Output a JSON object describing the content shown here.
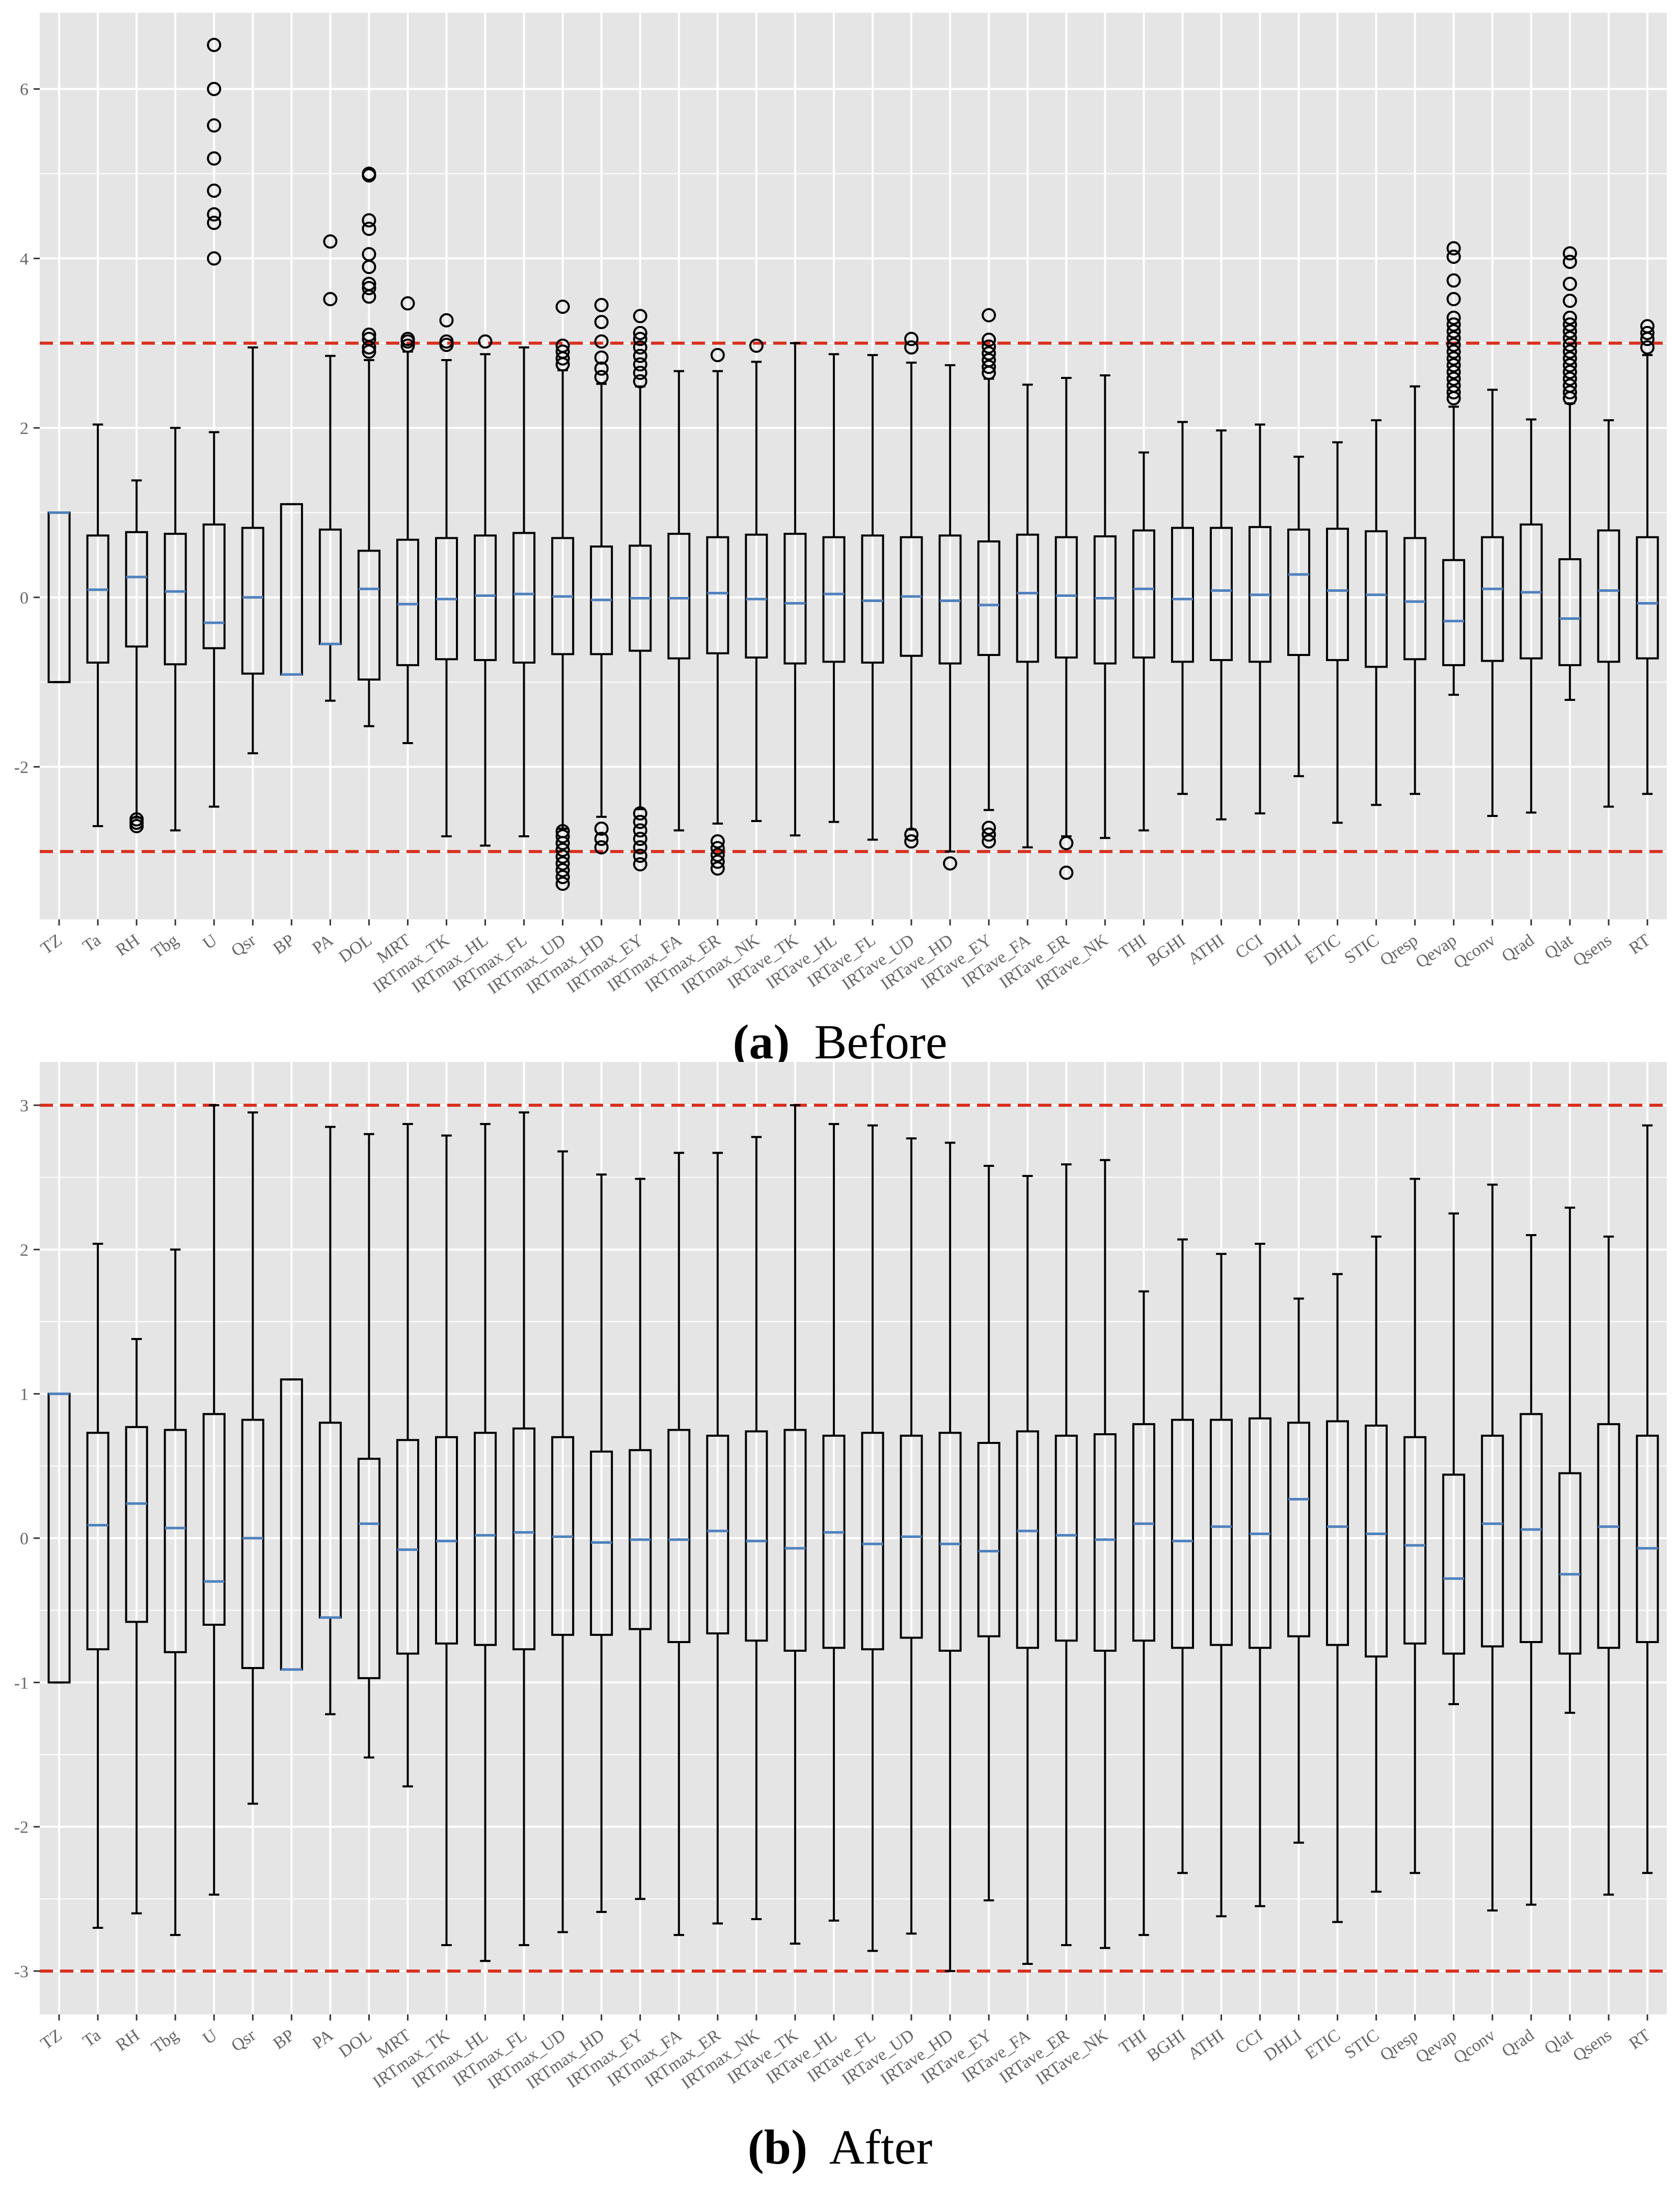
{
  "figure": {
    "caption_a_letter": "(a)",
    "caption_a_text": "Before",
    "caption_b_letter": "(b)",
    "caption_b_text": "After"
  },
  "colors": {
    "panel_bg": "#e5e5e5",
    "grid": "#ffffff",
    "box_line": "#000000",
    "median": "#4f81bd",
    "threshold": "#d9301f",
    "tick_text": "#666666"
  },
  "chart_data": [
    {
      "type": "boxplot",
      "panel": "a",
      "title": "Before",
      "xlabel": "",
      "ylabel": "",
      "ylim": [
        -3.8,
        6.9
      ],
      "yticks": [
        -2,
        0,
        2,
        4,
        6
      ],
      "thresholds": [
        3,
        -3
      ],
      "grid": true,
      "categories": [
        "TZ",
        "Ta",
        "RH",
        "Tbg",
        "U",
        "Qsr",
        "BP",
        "PA",
        "DOL",
        "MRT",
        "IRTmax_TK",
        "IRTmax_HL",
        "IRTmax_FL",
        "IRTmax_UD",
        "IRTmax_HD",
        "IRTmax_EY",
        "IRTmax_FA",
        "IRTmax_ER",
        "IRTmax_NK",
        "IRTave_TK",
        "IRTave_HL",
        "IRTave_FL",
        "IRTave_UD",
        "IRTave_HD",
        "IRTave_EY",
        "IRTave_FA",
        "IRTave_ER",
        "IRTave_NK",
        "THI",
        "BGHI",
        "ATHI",
        "CCI",
        "DHLI",
        "ETIC",
        "STIC",
        "Qresp",
        "Qevap",
        "Qconv",
        "Qrad",
        "Qlat",
        "Qsens",
        "RT"
      ],
      "boxes": [
        {
          "whislo": -1.0,
          "q1": -1.0,
          "med": 1.0,
          "q3": 1.0,
          "whishi": 1.0,
          "fliers": []
        },
        {
          "whislo": -2.7,
          "q1": -0.77,
          "med": 0.09,
          "q3": 0.73,
          "whishi": 2.04,
          "fliers": []
        },
        {
          "whislo": -2.6,
          "q1": -0.58,
          "med": 0.24,
          "q3": 0.77,
          "whishi": 1.38,
          "fliers": [
            -2.62,
            -2.66,
            -2.7
          ]
        },
        {
          "whislo": -2.75,
          "q1": -0.79,
          "med": 0.07,
          "q3": 0.75,
          "whishi": 2.0,
          "fliers": []
        },
        {
          "whislo": -2.47,
          "q1": -0.6,
          "med": -0.3,
          "q3": 0.86,
          "whishi": 1.95,
          "fliers": [
            4.0,
            4.42,
            4.52,
            4.8,
            5.18,
            5.57,
            6.0,
            6.52
          ]
        },
        {
          "whislo": -1.84,
          "q1": -0.9,
          "med": 0.0,
          "q3": 0.82,
          "whishi": 2.95,
          "fliers": []
        },
        {
          "whislo": -0.91,
          "q1": -0.91,
          "med": -0.91,
          "q3": 1.1,
          "whishi": 1.1,
          "fliers": []
        },
        {
          "whislo": -1.22,
          "q1": -0.55,
          "med": -0.55,
          "q3": 0.8,
          "whishi": 2.85,
          "fliers": [
            3.52,
            4.2
          ]
        },
        {
          "whislo": -1.52,
          "q1": -0.97,
          "med": 0.1,
          "q3": 0.55,
          "whishi": 2.8,
          "fliers": [
            2.9,
            2.95,
            3.05,
            3.1,
            3.55,
            3.65,
            3.7,
            3.9,
            4.05,
            4.35,
            4.45,
            4.98,
            5.0
          ]
        },
        {
          "whislo": -1.72,
          "q1": -0.8,
          "med": -0.08,
          "q3": 0.68,
          "whishi": 2.9,
          "fliers": [
            2.97,
            3.02,
            3.05,
            3.47
          ]
        },
        {
          "whislo": -2.82,
          "q1": -0.73,
          "med": -0.02,
          "q3": 0.7,
          "whishi": 2.8,
          "fliers": [
            2.98,
            3.02,
            3.27
          ]
        },
        {
          "whislo": -2.93,
          "q1": -0.74,
          "med": 0.02,
          "q3": 0.73,
          "whishi": 2.87,
          "fliers": [
            3.02
          ]
        },
        {
          "whislo": -2.82,
          "q1": -0.77,
          "med": 0.04,
          "q3": 0.76,
          "whishi": 2.95,
          "fliers": []
        },
        {
          "whislo": -2.73,
          "q1": -0.67,
          "med": 0.01,
          "q3": 0.7,
          "whishi": 2.68,
          "fliers": [
            -3.38,
            -3.3,
            -3.22,
            -3.14,
            -3.06,
            -2.98,
            -2.9,
            -2.82,
            -2.76,
            2.75,
            2.82,
            2.9,
            2.97,
            3.43
          ]
        },
        {
          "whislo": -2.59,
          "q1": -0.67,
          "med": -0.03,
          "q3": 0.6,
          "whishi": 2.52,
          "fliers": [
            -2.95,
            -2.85,
            -2.73,
            2.6,
            2.7,
            2.83,
            3.02,
            3.25,
            3.45
          ]
        },
        {
          "whislo": -2.5,
          "q1": -0.63,
          "med": -0.01,
          "q3": 0.61,
          "whishi": 2.49,
          "fliers": [
            -3.15,
            -3.05,
            -2.95,
            -2.85,
            -2.75,
            -2.65,
            -2.55,
            2.55,
            2.65,
            2.75,
            2.85,
            2.95,
            3.05,
            3.12,
            3.32
          ]
        },
        {
          "whislo": -2.75,
          "q1": -0.72,
          "med": -0.01,
          "q3": 0.75,
          "whishi": 2.67,
          "fliers": []
        },
        {
          "whislo": -2.67,
          "q1": -0.66,
          "med": 0.05,
          "q3": 0.71,
          "whishi": 2.67,
          "fliers": [
            -3.2,
            -3.12,
            -3.04,
            -2.96,
            -2.88,
            2.86
          ]
        },
        {
          "whislo": -2.64,
          "q1": -0.71,
          "med": -0.02,
          "q3": 0.74,
          "whishi": 2.78,
          "fliers": [
            2.97
          ]
        },
        {
          "whislo": -2.81,
          "q1": -0.78,
          "med": -0.07,
          "q3": 0.75,
          "whishi": 3.0,
          "fliers": []
        },
        {
          "whislo": -2.65,
          "q1": -0.76,
          "med": 0.04,
          "q3": 0.71,
          "whishi": 2.87,
          "fliers": []
        },
        {
          "whislo": -2.86,
          "q1": -0.77,
          "med": -0.04,
          "q3": 0.73,
          "whishi": 2.86,
          "fliers": []
        },
        {
          "whislo": -2.74,
          "q1": -0.69,
          "med": 0.01,
          "q3": 0.71,
          "whishi": 2.77,
          "fliers": [
            -2.88,
            -2.8,
            2.95,
            3.05
          ]
        },
        {
          "whislo": -3.0,
          "q1": -0.78,
          "med": -0.04,
          "q3": 0.73,
          "whishi": 2.74,
          "fliers": [
            -3.14
          ]
        },
        {
          "whislo": -2.51,
          "q1": -0.68,
          "med": -0.09,
          "q3": 0.66,
          "whishi": 2.58,
          "fliers": [
            -2.88,
            -2.8,
            -2.72,
            2.65,
            2.72,
            2.8,
            2.88,
            2.96,
            3.04,
            3.33
          ]
        },
        {
          "whislo": -2.95,
          "q1": -0.76,
          "med": 0.05,
          "q3": 0.74,
          "whishi": 2.51,
          "fliers": []
        },
        {
          "whislo": -2.82,
          "q1": -0.71,
          "med": 0.02,
          "q3": 0.71,
          "whishi": 2.59,
          "fliers": [
            -3.25,
            -2.9
          ]
        },
        {
          "whislo": -2.84,
          "q1": -0.78,
          "med": -0.01,
          "q3": 0.72,
          "whishi": 2.62,
          "fliers": []
        },
        {
          "whislo": -2.75,
          "q1": -0.71,
          "med": 0.1,
          "q3": 0.79,
          "whishi": 1.71,
          "fliers": []
        },
        {
          "whislo": -2.32,
          "q1": -0.76,
          "med": -0.02,
          "q3": 0.82,
          "whishi": 2.07,
          "fliers": []
        },
        {
          "whislo": -2.62,
          "q1": -0.74,
          "med": 0.08,
          "q3": 0.82,
          "whishi": 1.97,
          "fliers": []
        },
        {
          "whislo": -2.55,
          "q1": -0.76,
          "med": 0.03,
          "q3": 0.83,
          "whishi": 2.04,
          "fliers": []
        },
        {
          "whislo": -2.11,
          "q1": -0.68,
          "med": 0.27,
          "q3": 0.8,
          "whishi": 1.66,
          "fliers": []
        },
        {
          "whislo": -2.66,
          "q1": -0.74,
          "med": 0.08,
          "q3": 0.81,
          "whishi": 1.83,
          "fliers": []
        },
        {
          "whislo": -2.45,
          "q1": -0.82,
          "med": 0.03,
          "q3": 0.78,
          "whishi": 2.09,
          "fliers": []
        },
        {
          "whislo": -2.32,
          "q1": -0.73,
          "med": -0.05,
          "q3": 0.7,
          "whishi": 2.49,
          "fliers": []
        },
        {
          "whislo": -1.15,
          "q1": -0.8,
          "med": -0.28,
          "q3": 0.44,
          "whishi": 2.25,
          "fliers": [
            2.35,
            2.42,
            2.5,
            2.58,
            2.66,
            2.74,
            2.82,
            2.9,
            2.98,
            3.06,
            3.14,
            3.22,
            3.3,
            3.52,
            3.74,
            4.02,
            4.12
          ]
        },
        {
          "whislo": -2.58,
          "q1": -0.75,
          "med": 0.1,
          "q3": 0.71,
          "whishi": 2.45,
          "fliers": []
        },
        {
          "whislo": -2.54,
          "q1": -0.72,
          "med": 0.06,
          "q3": 0.86,
          "whishi": 2.1,
          "fliers": []
        },
        {
          "whislo": -1.21,
          "q1": -0.8,
          "med": -0.25,
          "q3": 0.45,
          "whishi": 2.29,
          "fliers": [
            2.35,
            2.42,
            2.5,
            2.58,
            2.66,
            2.74,
            2.82,
            2.9,
            2.98,
            3.06,
            3.14,
            3.22,
            3.3,
            3.5,
            3.7,
            3.96,
            4.06
          ]
        },
        {
          "whislo": -2.47,
          "q1": -0.76,
          "med": 0.08,
          "q3": 0.79,
          "whishi": 2.09,
          "fliers": []
        },
        {
          "whislo": -2.32,
          "q1": -0.72,
          "med": -0.07,
          "q3": 0.71,
          "whishi": 2.86,
          "fliers": [
            2.95,
            3.05,
            3.12,
            3.2
          ]
        }
      ]
    },
    {
      "type": "boxplot",
      "panel": "b",
      "title": "After",
      "xlabel": "",
      "ylabel": "",
      "ylim": [
        -3.3,
        3.3
      ],
      "yticks": [
        -3,
        -2,
        -1,
        0,
        1,
        2,
        3
      ],
      "thresholds": [
        3,
        -3
      ],
      "grid": true,
      "categories": [
        "TZ",
        "Ta",
        "RH",
        "Tbg",
        "U",
        "Qsr",
        "BP",
        "PA",
        "DOL",
        "MRT",
        "IRTmax_TK",
        "IRTmax_HL",
        "IRTmax_FL",
        "IRTmax_UD",
        "IRTmax_HD",
        "IRTmax_EY",
        "IRTmax_FA",
        "IRTmax_ER",
        "IRTmax_NK",
        "IRTave_TK",
        "IRTave_HL",
        "IRTave_FL",
        "IRTave_UD",
        "IRTave_HD",
        "IRTave_EY",
        "IRTave_FA",
        "IRTave_ER",
        "IRTave_NK",
        "THI",
        "BGHI",
        "ATHI",
        "CCI",
        "DHLI",
        "ETIC",
        "STIC",
        "Qresp",
        "Qevap",
        "Qconv",
        "Qrad",
        "Qlat",
        "Qsens",
        "RT"
      ],
      "boxes": [
        {
          "whislo": -1.0,
          "q1": -1.0,
          "med": 1.0,
          "q3": 1.0,
          "whishi": 1.0,
          "fliers": []
        },
        {
          "whislo": -2.7,
          "q1": -0.77,
          "med": 0.09,
          "q3": 0.73,
          "whishi": 2.04,
          "fliers": []
        },
        {
          "whislo": -2.6,
          "q1": -0.58,
          "med": 0.24,
          "q3": 0.77,
          "whishi": 1.38,
          "fliers": []
        },
        {
          "whislo": -2.75,
          "q1": -0.79,
          "med": 0.07,
          "q3": 0.75,
          "whishi": 2.0,
          "fliers": []
        },
        {
          "whislo": -2.47,
          "q1": -0.6,
          "med": -0.3,
          "q3": 0.86,
          "whishi": 3.0,
          "fliers": []
        },
        {
          "whislo": -1.84,
          "q1": -0.9,
          "med": 0.0,
          "q3": 0.82,
          "whishi": 2.95,
          "fliers": []
        },
        {
          "whislo": -0.91,
          "q1": -0.91,
          "med": -0.91,
          "q3": 1.1,
          "whishi": 1.1,
          "fliers": []
        },
        {
          "whislo": -1.22,
          "q1": -0.55,
          "med": -0.55,
          "q3": 0.8,
          "whishi": 2.85,
          "fliers": []
        },
        {
          "whislo": -1.52,
          "q1": -0.97,
          "med": 0.1,
          "q3": 0.55,
          "whishi": 2.8,
          "fliers": []
        },
        {
          "whislo": -1.72,
          "q1": -0.8,
          "med": -0.08,
          "q3": 0.68,
          "whishi": 2.87,
          "fliers": []
        },
        {
          "whislo": -2.82,
          "q1": -0.73,
          "med": -0.02,
          "q3": 0.7,
          "whishi": 2.79,
          "fliers": []
        },
        {
          "whislo": -2.93,
          "q1": -0.74,
          "med": 0.02,
          "q3": 0.73,
          "whishi": 2.87,
          "fliers": []
        },
        {
          "whislo": -2.82,
          "q1": -0.77,
          "med": 0.04,
          "q3": 0.76,
          "whishi": 2.95,
          "fliers": []
        },
        {
          "whislo": -2.73,
          "q1": -0.67,
          "med": 0.01,
          "q3": 0.7,
          "whishi": 2.68,
          "fliers": []
        },
        {
          "whislo": -2.59,
          "q1": -0.67,
          "med": -0.03,
          "q3": 0.6,
          "whishi": 2.52,
          "fliers": []
        },
        {
          "whislo": -2.5,
          "q1": -0.63,
          "med": -0.01,
          "q3": 0.61,
          "whishi": 2.49,
          "fliers": []
        },
        {
          "whislo": -2.75,
          "q1": -0.72,
          "med": -0.01,
          "q3": 0.75,
          "whishi": 2.67,
          "fliers": []
        },
        {
          "whislo": -2.67,
          "q1": -0.66,
          "med": 0.05,
          "q3": 0.71,
          "whishi": 2.67,
          "fliers": []
        },
        {
          "whislo": -2.64,
          "q1": -0.71,
          "med": -0.02,
          "q3": 0.74,
          "whishi": 2.78,
          "fliers": []
        },
        {
          "whislo": -2.81,
          "q1": -0.78,
          "med": -0.07,
          "q3": 0.75,
          "whishi": 3.0,
          "fliers": []
        },
        {
          "whislo": -2.65,
          "q1": -0.76,
          "med": 0.04,
          "q3": 0.71,
          "whishi": 2.87,
          "fliers": []
        },
        {
          "whislo": -2.86,
          "q1": -0.77,
          "med": -0.04,
          "q3": 0.73,
          "whishi": 2.86,
          "fliers": []
        },
        {
          "whislo": -2.74,
          "q1": -0.69,
          "med": 0.01,
          "q3": 0.71,
          "whishi": 2.77,
          "fliers": []
        },
        {
          "whislo": -3.0,
          "q1": -0.78,
          "med": -0.04,
          "q3": 0.73,
          "whishi": 2.74,
          "fliers": []
        },
        {
          "whislo": -2.51,
          "q1": -0.68,
          "med": -0.09,
          "q3": 0.66,
          "whishi": 2.58,
          "fliers": []
        },
        {
          "whislo": -2.95,
          "q1": -0.76,
          "med": 0.05,
          "q3": 0.74,
          "whishi": 2.51,
          "fliers": []
        },
        {
          "whislo": -2.82,
          "q1": -0.71,
          "med": 0.02,
          "q3": 0.71,
          "whishi": 2.59,
          "fliers": []
        },
        {
          "whislo": -2.84,
          "q1": -0.78,
          "med": -0.01,
          "q3": 0.72,
          "whishi": 2.62,
          "fliers": []
        },
        {
          "whislo": -2.75,
          "q1": -0.71,
          "med": 0.1,
          "q3": 0.79,
          "whishi": 1.71,
          "fliers": []
        },
        {
          "whislo": -2.32,
          "q1": -0.76,
          "med": -0.02,
          "q3": 0.82,
          "whishi": 2.07,
          "fliers": []
        },
        {
          "whislo": -2.62,
          "q1": -0.74,
          "med": 0.08,
          "q3": 0.82,
          "whishi": 1.97,
          "fliers": []
        },
        {
          "whislo": -2.55,
          "q1": -0.76,
          "med": 0.03,
          "q3": 0.83,
          "whishi": 2.04,
          "fliers": []
        },
        {
          "whislo": -2.11,
          "q1": -0.68,
          "med": 0.27,
          "q3": 0.8,
          "whishi": 1.66,
          "fliers": []
        },
        {
          "whislo": -2.66,
          "q1": -0.74,
          "med": 0.08,
          "q3": 0.81,
          "whishi": 1.83,
          "fliers": []
        },
        {
          "whislo": -2.45,
          "q1": -0.82,
          "med": 0.03,
          "q3": 0.78,
          "whishi": 2.09,
          "fliers": []
        },
        {
          "whislo": -2.32,
          "q1": -0.73,
          "med": -0.05,
          "q3": 0.7,
          "whishi": 2.49,
          "fliers": []
        },
        {
          "whislo": -1.15,
          "q1": -0.8,
          "med": -0.28,
          "q3": 0.44,
          "whishi": 2.25,
          "fliers": []
        },
        {
          "whislo": -2.58,
          "q1": -0.75,
          "med": 0.1,
          "q3": 0.71,
          "whishi": 2.45,
          "fliers": []
        },
        {
          "whislo": -2.54,
          "q1": -0.72,
          "med": 0.06,
          "q3": 0.86,
          "whishi": 2.1,
          "fliers": []
        },
        {
          "whislo": -1.21,
          "q1": -0.8,
          "med": -0.25,
          "q3": 0.45,
          "whishi": 2.29,
          "fliers": []
        },
        {
          "whislo": -2.47,
          "q1": -0.76,
          "med": 0.08,
          "q3": 0.79,
          "whishi": 2.09,
          "fliers": []
        },
        {
          "whislo": -2.32,
          "q1": -0.72,
          "med": -0.07,
          "q3": 0.71,
          "whishi": 2.86,
          "fliers": []
        }
      ]
    }
  ]
}
